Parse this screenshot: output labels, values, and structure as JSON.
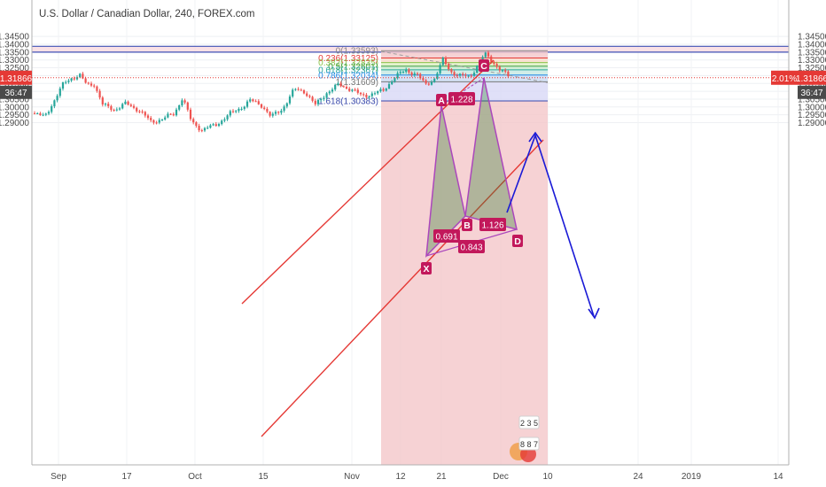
{
  "chart_data": {
    "type": "candlestick",
    "title": "U.S. Dollar / Canadian Dollar, 240, FOREX.com",
    "ylim": [
      1.2855,
      1.3455
    ],
    "y_ticks": [
      "1.34500",
      "1.34000",
      "1.33500",
      "1.33000",
      "1.32500",
      "1.32000",
      "1.31500",
      "1.31000",
      "1.30500",
      "1.30000",
      "1.29500",
      "1.29000"
    ],
    "y_tick_values": [
      1.345,
      1.34,
      1.335,
      1.33,
      1.325,
      1.32,
      1.315,
      1.31,
      1.305,
      1.3,
      1.295,
      1.29
    ],
    "x_ticks": [
      "Sep",
      "17",
      "Oct",
      "15",
      "Nov",
      "12",
      "21",
      "Dec",
      "10",
      "24",
      "2019",
      "14"
    ],
    "last_price": {
      "value": 1.31866,
      "label": "1.31866",
      "countdown": "36:47",
      "change_label": "2.01%"
    },
    "resistance_zone": {
      "low": 1.335,
      "high": 1.3387
    },
    "fibonacci": [
      {
        "label": "0(1.33593)",
        "value": 1.33593,
        "color": "#888888"
      },
      {
        "label": "0.236(1.33125)",
        "value": 1.33125,
        "color": "#e53935"
      },
      {
        "label": "0.382(1.32835)",
        "value": 1.32835,
        "color": "#8bc34a"
      },
      {
        "label": "0.5(1.32601)",
        "value": 1.32601,
        "color": "#43a047"
      },
      {
        "label": "0.618(1.32367)",
        "value": 1.32367,
        "color": "#26a69a"
      },
      {
        "label": "0.786(1.32034)",
        "value": 1.32034,
        "color": "#1e88e5"
      },
      {
        "label": "1(1.31609)",
        "value": 1.31609,
        "color": "#777777"
      },
      {
        "label": "1.618(1.30383)",
        "value": 1.30383,
        "color": "#3949ab"
      }
    ],
    "pattern_points": [
      {
        "name": "X",
        "value": 1.3131
      },
      {
        "name": "A",
        "value": 1.3315
      },
      {
        "name": "B",
        "value": 1.3187
      },
      {
        "name": "C",
        "value": 1.3357
      },
      {
        "name": "D",
        "value": 1.3165
      }
    ],
    "ratios": [
      "1.228",
      "0.691",
      "1.126",
      "0.843"
    ],
    "badge_digits": [
      "2 3 5",
      "8 8 7"
    ]
  }
}
